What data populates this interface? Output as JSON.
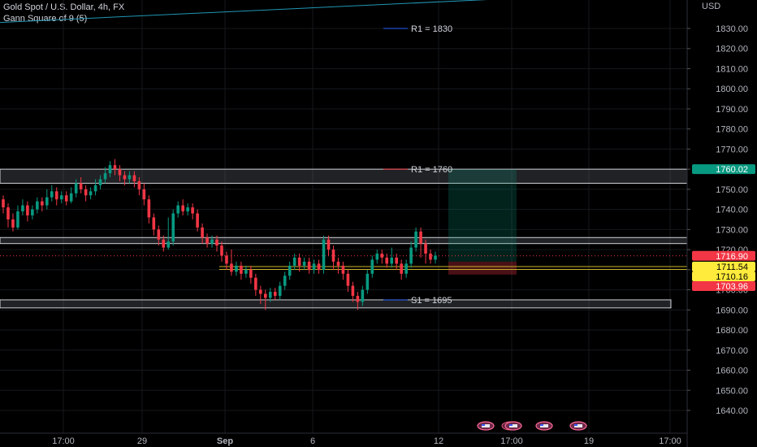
{
  "header": {
    "symbol_line": "Gold Spot / U.S. Dollar, 4h, FX",
    "indicator_line": "Gann Square of 9 (5)"
  },
  "chart_data": {
    "type": "candlestick",
    "currency_label": "USD",
    "y_ticks": [
      "1830.00",
      "1820.00",
      "1810.00",
      "1800.00",
      "1790.00",
      "1780.00",
      "1770.00",
      "1760.00",
      "1750.00",
      "1740.00",
      "1730.00",
      "1720.00",
      "1710.00",
      "1700.00",
      "1690.00",
      "1680.00",
      "1670.00",
      "1660.00",
      "1650.00",
      "1640.00"
    ],
    "ylim": [
      1637,
      1843
    ],
    "x_ticks": [
      "17:00",
      "29",
      "Sep",
      "6",
      "12",
      "17:00",
      "19",
      "17:00"
    ],
    "levels": [
      {
        "label": "R1 = 1830",
        "price": 1830,
        "color": "#2962ff"
      },
      {
        "label": "R1 = 1760",
        "price": 1760,
        "color": "#f23645"
      },
      {
        "label": "S1 = 1695",
        "price": 1695,
        "color": "#2962ff"
      }
    ],
    "zones": [
      {
        "top": 1760,
        "bottom": 1753
      },
      {
        "top": 1726,
        "bottom": 1723
      },
      {
        "top": 1695,
        "bottom": 1691
      }
    ],
    "trendline": {
      "start": 1833,
      "end": 1849
    },
    "position": {
      "entry": 1714,
      "target": 1760,
      "stop": 1710
    },
    "price_tags": [
      {
        "label": "1760.02",
        "price": 1760.02,
        "bg": "#089981",
        "fg": "#ffffff"
      },
      {
        "label": "1716.90",
        "price": 1716.9,
        "bg": "#f23645",
        "fg": "#ffffff"
      },
      {
        "label": "1711.54",
        "price": 1711.54,
        "bg": "#ffeb3b",
        "fg": "#000000"
      },
      {
        "label": "1710.16",
        "price": 1710.16,
        "bg": "#ffeb3b",
        "fg": "#000000"
      },
      {
        "label": "1703.96",
        "price": 1703.96,
        "bg": "#f23645",
        "fg": "#ffffff"
      }
    ],
    "candles": [
      [
        1745,
        1741,
        1747,
        1738
      ],
      [
        1741,
        1735,
        1743,
        1731
      ],
      [
        1735,
        1731,
        1738,
        1729
      ],
      [
        1731,
        1739,
        1742,
        1730
      ],
      [
        1739,
        1742,
        1745,
        1737
      ],
      [
        1742,
        1737,
        1744,
        1734
      ],
      [
        1737,
        1740,
        1742,
        1735
      ],
      [
        1740,
        1744,
        1746,
        1738
      ],
      [
        1744,
        1742,
        1746,
        1739
      ],
      [
        1742,
        1746,
        1750,
        1740
      ],
      [
        1746,
        1749,
        1752,
        1744
      ],
      [
        1749,
        1745,
        1751,
        1742
      ],
      [
        1745,
        1747,
        1749,
        1743
      ],
      [
        1747,
        1744,
        1749,
        1742
      ],
      [
        1744,
        1748,
        1751,
        1743
      ],
      [
        1748,
        1753,
        1755,
        1746
      ],
      [
        1753,
        1750,
        1756,
        1748
      ],
      [
        1750,
        1747,
        1752,
        1744
      ],
      [
        1747,
        1749,
        1751,
        1745
      ],
      [
        1749,
        1752,
        1755,
        1747
      ],
      [
        1752,
        1755,
        1757,
        1750
      ],
      [
        1755,
        1758,
        1761,
        1753
      ],
      [
        1758,
        1762,
        1764,
        1756
      ],
      [
        1762,
        1760,
        1765,
        1757
      ],
      [
        1760,
        1757,
        1762,
        1754
      ],
      [
        1757,
        1755,
        1759,
        1752
      ],
      [
        1755,
        1757,
        1759,
        1753
      ],
      [
        1757,
        1754,
        1759,
        1751
      ],
      [
        1754,
        1750,
        1756,
        1747
      ],
      [
        1750,
        1745,
        1753,
        1742
      ],
      [
        1745,
        1736,
        1747,
        1733
      ],
      [
        1736,
        1730,
        1738,
        1727
      ],
      [
        1730,
        1725,
        1732,
        1722
      ],
      [
        1725,
        1721,
        1727,
        1719
      ],
      [
        1721,
        1724,
        1736,
        1720
      ],
      [
        1724,
        1738,
        1740,
        1722
      ],
      [
        1738,
        1742,
        1744,
        1736
      ],
      [
        1742,
        1739,
        1745,
        1737
      ],
      [
        1739,
        1741,
        1743,
        1737
      ],
      [
        1741,
        1738,
        1743,
        1735
      ],
      [
        1738,
        1731,
        1740,
        1729
      ],
      [
        1731,
        1726,
        1733,
        1723
      ],
      [
        1726,
        1723,
        1728,
        1721
      ],
      [
        1723,
        1725,
        1727,
        1721
      ],
      [
        1725,
        1722,
        1727,
        1719
      ],
      [
        1722,
        1717,
        1724,
        1714
      ],
      [
        1717,
        1713,
        1719,
        1710
      ],
      [
        1713,
        1709,
        1720,
        1707
      ],
      [
        1709,
        1712,
        1714,
        1707
      ],
      [
        1712,
        1708,
        1714,
        1705
      ],
      [
        1708,
        1710,
        1712,
        1706
      ],
      [
        1710,
        1706,
        1712,
        1703
      ],
      [
        1706,
        1700,
        1708,
        1697
      ],
      [
        1700,
        1698,
        1702,
        1693
      ],
      [
        1698,
        1696,
        1700,
        1690
      ],
      [
        1696,
        1699,
        1701,
        1694
      ],
      [
        1699,
        1697,
        1701,
        1695
      ],
      [
        1697,
        1702,
        1704,
        1695
      ],
      [
        1702,
        1707,
        1709,
        1700
      ],
      [
        1707,
        1712,
        1714,
        1705
      ],
      [
        1712,
        1716,
        1718,
        1710
      ],
      [
        1716,
        1712,
        1718,
        1709
      ],
      [
        1712,
        1714,
        1716,
        1710
      ],
      [
        1714,
        1710,
        1716,
        1708
      ],
      [
        1710,
        1713,
        1715,
        1708
      ],
      [
        1713,
        1710,
        1715,
        1708
      ],
      [
        1710,
        1725,
        1727,
        1708
      ],
      [
        1725,
        1720,
        1727,
        1717
      ],
      [
        1720,
        1714,
        1722,
        1710
      ],
      [
        1714,
        1712,
        1716,
        1708
      ],
      [
        1712,
        1708,
        1714,
        1705
      ],
      [
        1708,
        1702,
        1710,
        1699
      ],
      [
        1702,
        1697,
        1704,
        1694
      ],
      [
        1697,
        1694,
        1699,
        1690
      ],
      [
        1694,
        1700,
        1702,
        1692
      ],
      [
        1700,
        1708,
        1710,
        1698
      ],
      [
        1708,
        1715,
        1717,
        1706
      ],
      [
        1715,
        1718,
        1720,
        1713
      ],
      [
        1718,
        1716,
        1720,
        1713
      ],
      [
        1716,
        1713,
        1718,
        1711
      ],
      [
        1713,
        1716,
        1721,
        1711
      ],
      [
        1716,
        1713,
        1718,
        1710
      ],
      [
        1713,
        1708,
        1715,
        1705
      ],
      [
        1708,
        1713,
        1715,
        1706
      ],
      [
        1713,
        1721,
        1724,
        1711
      ],
      [
        1721,
        1729,
        1731,
        1719
      ],
      [
        1729,
        1723,
        1731,
        1716
      ],
      [
        1723,
        1718,
        1725,
        1713
      ],
      [
        1718,
        1715,
        1720,
        1713
      ],
      [
        1715,
        1717,
        1719,
        1713
      ]
    ]
  }
}
